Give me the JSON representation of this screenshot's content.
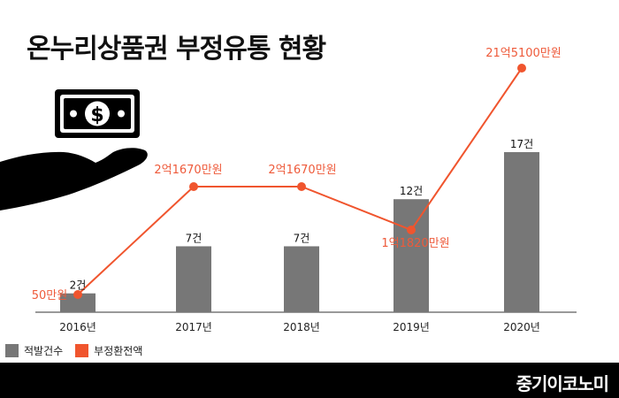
{
  "title": "온누리상품권 부정유통 현황",
  "brand": "중기이코노미",
  "legend": [
    {
      "label": "적발건수",
      "color": "#777777"
    },
    {
      "label": "부정환전액",
      "color": "#f0552e"
    }
  ],
  "icons": [
    "money-bill-icon",
    "open-hand-icon"
  ],
  "chart_data": {
    "type": "bar",
    "categories": [
      "2016년",
      "2017년",
      "2018년",
      "2019년",
      "2020년"
    ],
    "series": [
      {
        "name": "적발건수",
        "type": "bar",
        "color": "#777777",
        "values": [
          2,
          7,
          7,
          12,
          17
        ],
        "labels": [
          "2건",
          "7건",
          "7건",
          "12건",
          "17건"
        ]
      },
      {
        "name": "부정환전액",
        "type": "line",
        "color": "#f0552e",
        "values": [
          50,
          21670,
          21670,
          11820,
          215100
        ],
        "unit": "만원",
        "labels": [
          "50만원",
          "2억1670만원",
          "2억1670만원",
          "1억1820만원",
          "21억5100만원"
        ]
      }
    ],
    "grid": false,
    "legend_position": "bottom-left"
  }
}
